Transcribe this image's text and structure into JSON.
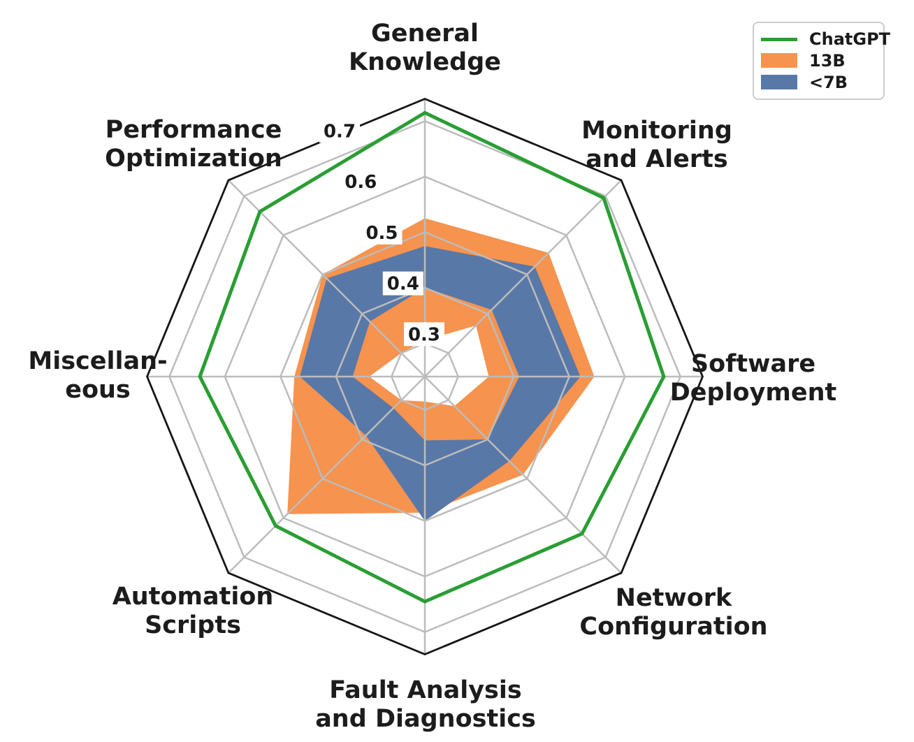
{
  "chart_data": {
    "type": "radar",
    "title": "",
    "categories": [
      "General Knowledge",
      "Monitoring and Alerts",
      "Software Deployment",
      "Network Configuration",
      "Fault Analysis and Diagnostics",
      "Automation Scripts",
      "Miscellaneous",
      "Performance Optimization"
    ],
    "category_label_lines": [
      [
        "General",
        "Knowledge"
      ],
      [
        "Monitoring",
        "and Alerts"
      ],
      [
        "Software",
        "Deployment"
      ],
      [
        "Network",
        "Configuration"
      ],
      [
        "Fault Analysis",
        "and Diagnostics"
      ],
      [
        "Automation",
        "Scripts"
      ],
      [
        "Miscellan-",
        "eous"
      ],
      [
        "Performance",
        "Optimization"
      ]
    ],
    "radial_axis": {
      "min": 0.24,
      "max": 0.74,
      "ticks": [
        0.3,
        0.4,
        0.5,
        0.6,
        0.7
      ]
    },
    "series": [
      {
        "name": "ChatGPT",
        "style": "line",
        "color": "#2a9e33",
        "values": [
          0.715,
          0.695,
          0.67,
          0.64,
          0.645,
          0.62,
          0.645,
          0.66
        ]
      },
      {
        "name": "13B",
        "style": "band",
        "color": "#f6934e",
        "outer": [
          0.525,
          0.555,
          0.545,
          0.49,
          0.485,
          0.59,
          0.475,
          0.5
        ],
        "inner": [
          0.305,
          0.37,
          0.355,
          0.315,
          0.285,
          0.3,
          0.34,
          0.3
        ]
      },
      {
        "name": "<7B",
        "style": "band",
        "color": "#5878a8",
        "outer": [
          0.475,
          0.52,
          0.52,
          0.455,
          0.5,
          0.39,
          0.465,
          0.49
        ],
        "inner": [
          0.4,
          0.41,
          0.41,
          0.4,
          0.355,
          0.32,
          0.37,
          0.38
        ]
      }
    ],
    "legend": {
      "position": "top-right",
      "entries": [
        "ChatGPT",
        "13B",
        "<7B"
      ]
    },
    "grid": {
      "shape": "octagon",
      "color": "#bcbcbc",
      "outline_color": "#151515",
      "tick_label_color": "#1a1a1a",
      "axis_label_color": "#1c1c1c"
    }
  }
}
